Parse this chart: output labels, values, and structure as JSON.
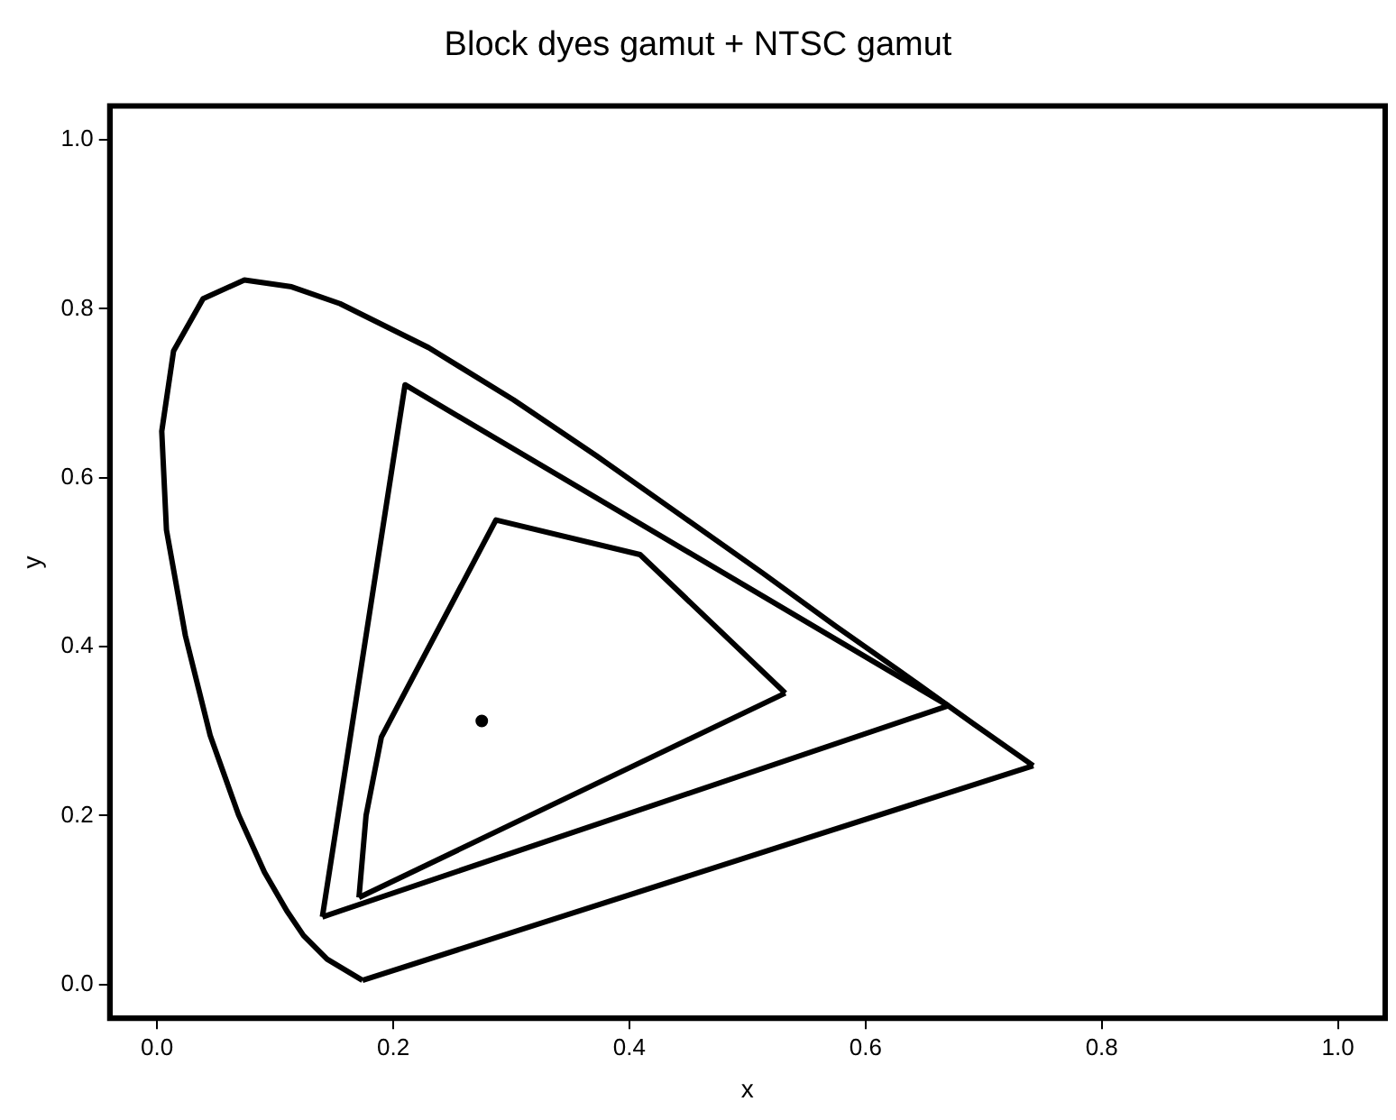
{
  "chart_data": {
    "type": "line",
    "title": "Block dyes gamut + NTSC gamut",
    "xlabel": "x",
    "ylabel": "y",
    "xlim": [
      -0.04,
      1.04
    ],
    "ylim": [
      -0.04,
      1.04
    ],
    "xticks": [
      {
        "value": 0,
        "label": "0.0"
      },
      {
        "value": 0.2,
        "label": "0.2"
      },
      {
        "value": 0.4,
        "label": "0.4"
      },
      {
        "value": 0.6,
        "label": "0.6"
      },
      {
        "value": 0.8,
        "label": "0.8"
      },
      {
        "value": 1,
        "label": "1.0"
      }
    ],
    "yticks": [
      {
        "value": 0,
        "label": "0.0"
      },
      {
        "value": 0.2,
        "label": "0.2"
      },
      {
        "value": 0.4,
        "label": "0.4"
      },
      {
        "value": 0.6,
        "label": "0.6"
      },
      {
        "value": 0.8,
        "label": "0.8"
      },
      {
        "value": 1,
        "label": "1.0"
      }
    ],
    "grid": false,
    "legend": false,
    "marker": "none",
    "line_style": "solid",
    "series": [
      {
        "color": "#000000",
        "x": [
          0.174,
          0.144,
          0.124,
          0.11,
          0.091,
          0.069,
          0.045,
          0.024,
          0.008,
          0.004,
          0.014,
          0.039,
          0.074,
          0.114,
          0.155,
          0.23,
          0.302,
          0.373,
          0.444,
          0.513,
          0.575,
          0.627,
          0.692,
          0.742
        ],
        "values": [
          0.005,
          0.03,
          0.058,
          0.087,
          0.133,
          0.201,
          0.295,
          0.413,
          0.538,
          0.655,
          0.75,
          0.812,
          0.834,
          0.826,
          0.806,
          0.754,
          0.692,
          0.625,
          0.555,
          0.487,
          0.424,
          0.373,
          0.308,
          0.259
        ]
      },
      {
        "color": "#000000",
        "x": [
          0.174,
          0.742
        ],
        "values": [
          0.005,
          0.259
        ]
      },
      {
        "color": "#000000",
        "x": [
          0.14,
          0.21,
          0.67
        ],
        "values": [
          0.08,
          0.71,
          0.33
        ]
      },
      {
        "color": "#000000",
        "x": [
          0.14,
          0.67
        ],
        "values": [
          0.08,
          0.33
        ]
      },
      {
        "color": "#000000",
        "x": [
          0.171,
          0.177,
          0.19,
          0.287,
          0.409,
          0.532
        ],
        "values": [
          0.103,
          0.2,
          0.293,
          0.55,
          0.509,
          0.345
        ]
      },
      {
        "color": "#000000",
        "x": [
          0.171,
          0.532
        ],
        "values": [
          0.103,
          0.345
        ]
      },
      {
        "type": "scatter",
        "marker": "circle",
        "color": "#000000",
        "x": [
          0.275
        ],
        "values": [
          0.312
        ]
      }
    ]
  }
}
